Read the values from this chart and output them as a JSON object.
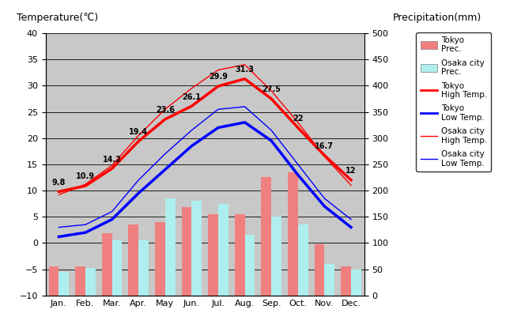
{
  "months": [
    "Jan.",
    "Feb.",
    "Mar.",
    "Apr.",
    "May",
    "Jun.",
    "Jul.",
    "Aug.",
    "Sep.",
    "Oct.",
    "Nov.",
    "Dec."
  ],
  "tokyo_high": [
    9.8,
    10.9,
    14.2,
    19.4,
    23.6,
    26.1,
    29.9,
    31.3,
    27.5,
    22,
    16.7,
    12
  ],
  "tokyo_low": [
    1.2,
    2.0,
    4.5,
    9.5,
    14.0,
    18.5,
    22.0,
    23.0,
    19.5,
    13.0,
    7.0,
    3.0
  ],
  "osaka_high": [
    9.2,
    11.2,
    14.8,
    20.5,
    25.5,
    29.5,
    33.0,
    34.0,
    29.0,
    23.0,
    16.5,
    11.0
  ],
  "osaka_low": [
    3.0,
    3.5,
    6.0,
    12.0,
    17.0,
    21.5,
    25.5,
    26.0,
    21.5,
    15.0,
    8.5,
    4.5
  ],
  "tokyo_high_labels": [
    "9.8",
    "10.9",
    "14.2",
    "19.4",
    "23.6",
    "26.1",
    "29.9",
    "31.3",
    "27.5",
    "22",
    "16.7",
    "12"
  ],
  "tokyo_prec_temp": [
    -4.5,
    -4.5,
    1.8,
    3.5,
    4.0,
    6.8,
    5.5,
    5.5,
    12.5,
    13.5,
    -0.2,
    -4.5
  ],
  "osaka_prec_temp": [
    -5.5,
    -4.8,
    0.5,
    0.5,
    8.5,
    8.0,
    7.5,
    1.5,
    5.0,
    3.5,
    -4.0,
    -5.0
  ],
  "bg_color": "#c8c8c8",
  "temp_ylim": [
    -10,
    40
  ],
  "bar_width": 0.38,
  "tokyo_bar_color": "#F08080",
  "osaka_bar_color": "#AFEEEE",
  "tokyo_high_color": "red",
  "tokyo_low_color": "blue",
  "osaka_high_color": "red",
  "osaka_low_color": "blue",
  "grid_color": "black",
  "label_fontsize": 7,
  "tick_fontsize": 8,
  "axis_label_fontsize": 9
}
